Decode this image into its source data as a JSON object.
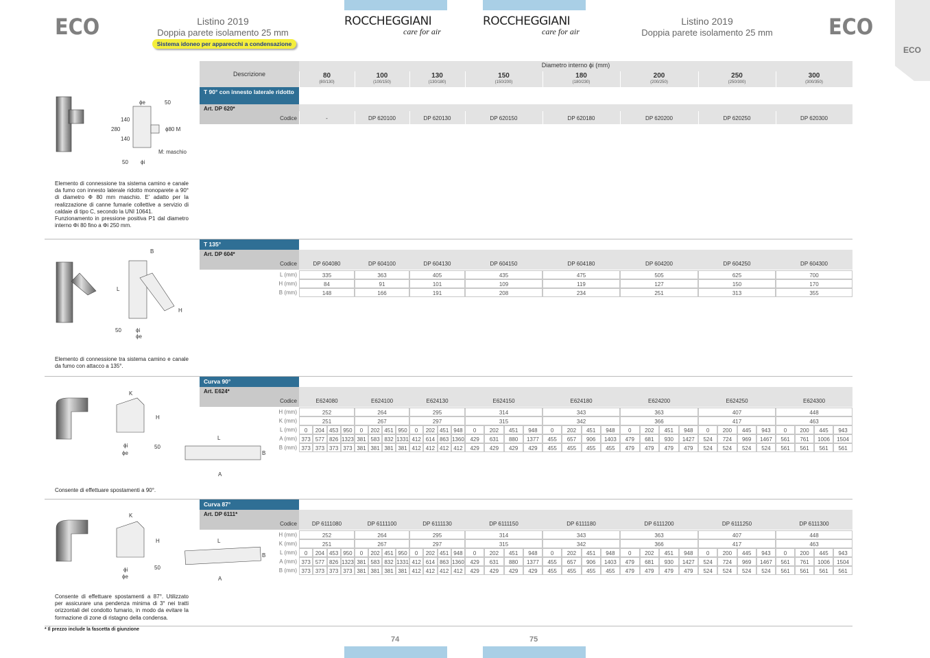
{
  "header": {
    "left_brand": "ECO",
    "left_price_list": "Listino 2019",
    "left_subtitle": "Doppia parete isolamento 25 mm",
    "badge": "Sistema idoneo per apparecchi a condensazione",
    "logo_left": "ROCCHEGGIANI",
    "logo_left_tagline": "care for air",
    "logo_right": "ROCCHEGGIANI",
    "logo_right_tagline": "care for air",
    "right_price_list": "Listino 2019",
    "right_subtitle": "Doppia parete isolamento 25 mm",
    "right_brand": "ECO",
    "side_tab": "ECO"
  },
  "table": {
    "description_header": "Descrizione",
    "diameter_header": "Diametro interno ϕi (mm)",
    "code_label": "Codice",
    "columns": [
      {
        "d": 80,
        "sub": "(80/130)"
      },
      {
        "d": 100,
        "sub": "(100/150)"
      },
      {
        "d": 130,
        "sub": "(130/180)"
      },
      {
        "d": 150,
        "sub": "(150/200)"
      },
      {
        "d": 180,
        "sub": "(180/230)"
      },
      {
        "d": 200,
        "sub": "(200/250)"
      },
      {
        "d": 250,
        "sub": "(250/300)"
      },
      {
        "d": 300,
        "sub": "(300/350)"
      }
    ],
    "sections": [
      {
        "title": "T 90° con innesto laterale ridotto",
        "article": "Art. DP 620*",
        "codes": [
          "-",
          "DP 620100",
          "DP 620130",
          "DP 620150",
          "DP 620180",
          "DP 620200",
          "DP 620250",
          "DP 620300"
        ],
        "rows": [],
        "description": [
          "Elemento di connessione tra sistema camino e canale da fumo con innesto laterale ridotto monoparete a 90° di diametro Φ 80 mm maschio. E' adatto per la realizzazione di canne fumarie collettive a servizio di caldaie di tipo C, secondo la UNI 10641.",
          "Funzionamento in pressione positiva P1 dal diametro interno Φi 80 fino a Φi 250 mm."
        ],
        "diagram_labels": [
          "ϕe",
          "50",
          "140",
          "280",
          "140",
          "ϕ80 M",
          "M: maschio",
          "50",
          "ϕi"
        ]
      },
      {
        "title": "T 135°",
        "article": "Art. DP 604*",
        "codes": [
          "DP 604080",
          "DP 604100",
          "DP 604130",
          "DP 604150",
          "DP 604180",
          "DP 604200",
          "DP 604250",
          "DP 604300"
        ],
        "rows": [
          {
            "label": "L (mm)",
            "values": [
              335,
              363,
              405,
              435,
              475,
              505,
              625,
              700
            ]
          },
          {
            "label": "H (mm)",
            "values": [
              84,
              91,
              101,
              109,
              119,
              127,
              150,
              170
            ]
          },
          {
            "label": "B (mm)",
            "values": [
              148,
              166,
              191,
              208,
              234,
              251,
              313,
              355
            ]
          }
        ],
        "description": [
          "Elemento di connessione tra sistema camino e  canale da fumo con attacco a 135°."
        ],
        "diagram_labels": [
          "B",
          "L",
          "H",
          "50",
          "ϕi",
          "ϕe"
        ]
      },
      {
        "title": "Curva 90°",
        "article": "Art. E624*",
        "codes": [
          "E624080",
          "E624100",
          "E624130",
          "E624150",
          "E624180",
          "E624200",
          "E624250",
          "E624300"
        ],
        "rows": [
          {
            "label": "H (mm)",
            "values": [
              252,
              264,
              295,
              314,
              343,
              363,
              407,
              448
            ]
          },
          {
            "label": "K (mm)",
            "values": [
              251,
              267,
              297,
              315,
              342,
              366,
              417,
              463
            ]
          },
          {
            "label": "L (mm)",
            "values": [
              [
                0,
                204,
                453,
                950
              ],
              [
                0,
                202,
                451,
                950
              ],
              [
                0,
                202,
                451,
                948
              ],
              [
                0,
                202,
                451,
                948
              ],
              [
                0,
                202,
                451,
                948
              ],
              [
                0,
                202,
                451,
                948
              ],
              [
                0,
                200,
                445,
                943
              ],
              [
                0,
                200,
                445,
                943
              ]
            ]
          },
          {
            "label": "A (mm)",
            "values": [
              [
                373,
                577,
                826,
                1323
              ],
              [
                381,
                583,
                832,
                1331
              ],
              [
                412,
                614,
                863,
                1360
              ],
              [
                429,
                631,
                880,
                1377
              ],
              [
                455,
                657,
                906,
                1403
              ],
              [
                479,
                681,
                930,
                1427
              ],
              [
                524,
                724,
                969,
                1467
              ],
              [
                561,
                761,
                1006,
                1504
              ]
            ]
          },
          {
            "label": "B (mm)",
            "values": [
              [
                373,
                373,
                373,
                373
              ],
              [
                381,
                381,
                381,
                381
              ],
              [
                412,
                412,
                412,
                412
              ],
              [
                429,
                429,
                429,
                429
              ],
              [
                455,
                455,
                455,
                455
              ],
              [
                479,
                479,
                479,
                479
              ],
              [
                524,
                524,
                524,
                524
              ],
              [
                561,
                561,
                561,
                561
              ]
            ]
          }
        ],
        "description": [
          "Consente di effettuare spostamenti a 90°."
        ],
        "diagram_labels": [
          "K",
          "H",
          "ϕi",
          "ϕe",
          "50",
          "L",
          "A",
          "B"
        ]
      },
      {
        "title": "Curva 87°",
        "article": "Art. DP 6111*",
        "codes": [
          "DP 6111080",
          "DP 6111100",
          "DP 6111130",
          "DP 6111150",
          "DP 6111180",
          "DP 6111200",
          "DP 6111250",
          "DP 6111300"
        ],
        "rows": [
          {
            "label": "H (mm)",
            "values": [
              252,
              264,
              295,
              314,
              343,
              363,
              407,
              448
            ]
          },
          {
            "label": "K (mm)",
            "values": [
              251,
              267,
              297,
              315,
              342,
              366,
              417,
              463
            ]
          },
          {
            "label": "L (mm)",
            "values": [
              [
                0,
                204,
                453,
                950
              ],
              [
                0,
                202,
                451,
                950
              ],
              [
                0,
                202,
                451,
                948
              ],
              [
                0,
                202,
                451,
                948
              ],
              [
                0,
                202,
                451,
                948
              ],
              [
                0,
                202,
                451,
                948
              ],
              [
                0,
                200,
                445,
                943
              ],
              [
                0,
                200,
                445,
                943
              ]
            ]
          },
          {
            "label": "A (mm)",
            "values": [
              [
                373,
                577,
                826,
                1323
              ],
              [
                381,
                583,
                832,
                1331
              ],
              [
                412,
                614,
                863,
                1360
              ],
              [
                429,
                631,
                880,
                1377
              ],
              [
                455,
                657,
                906,
                1403
              ],
              [
                479,
                681,
                930,
                1427
              ],
              [
                524,
                724,
                969,
                1467
              ],
              [
                561,
                761,
                1006,
                1504
              ]
            ]
          },
          {
            "label": "B (mm)",
            "values": [
              [
                373,
                373,
                373,
                373
              ],
              [
                381,
                381,
                381,
                381
              ],
              [
                412,
                412,
                412,
                412
              ],
              [
                429,
                429,
                429,
                429
              ],
              [
                455,
                455,
                455,
                455
              ],
              [
                479,
                479,
                479,
                479
              ],
              [
                524,
                524,
                524,
                524
              ],
              [
                561,
                561,
                561,
                561
              ]
            ]
          }
        ],
        "description": [
          "Consente di effettuare spostamenti a 87°. Utilizzato per assicurare una pendenza minima di 3° nei tratti orizzontali del condotto fumario, in modo da evitare la formazione di zone di ristagno della condensa."
        ],
        "diagram_labels": [
          "K",
          "H",
          "ϕi",
          "ϕe",
          "50",
          "L",
          "A",
          "B"
        ]
      }
    ]
  },
  "footnote": "* Il prezzo include la fascetta di giunzione",
  "page_left": "74",
  "page_right": "75"
}
